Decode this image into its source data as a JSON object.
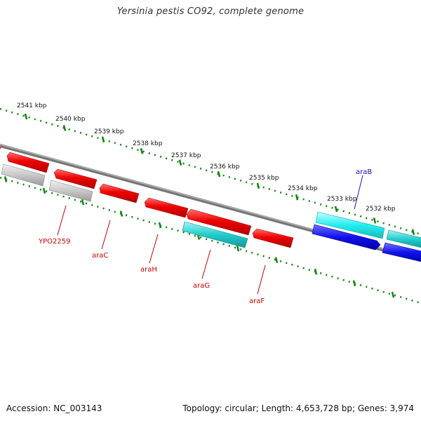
{
  "title": "Yersinia pestis CO92, complete genome",
  "accession": "Accession: NC_003143",
  "topology": "Topology: circular; Length: 4,653,728 bp; Genes: 3,974",
  "colors": {
    "backbone": "#808080",
    "tick_track": "#118811",
    "gene_red": "#ee0000",
    "gene_cyan": "#22cccc",
    "gene_blue": "#1111ee",
    "gene_grey": "#c0c0c0",
    "label_red": "#cc0000",
    "label_blue": "#1111bb"
  },
  "kbp_labels": [
    "2541 kbp",
    "2540 kbp",
    "2539 kbp",
    "2538 kbp",
    "2537 kbp",
    "2536 kbp",
    "2535 kbp",
    "2534 kbp",
    "2533 kbp",
    "2532 kbp"
  ],
  "gene_labels": [
    "YPO2259",
    "araC",
    "araH",
    "araG",
    "araF",
    "araB"
  ]
}
